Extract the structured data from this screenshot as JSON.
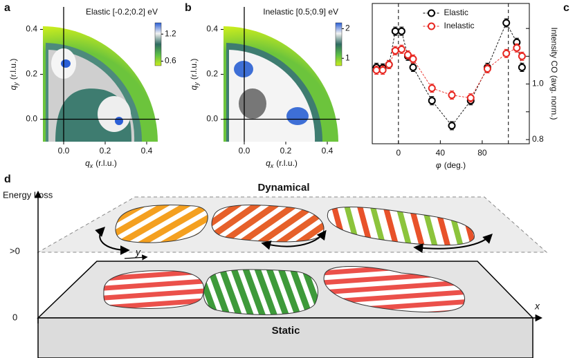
{
  "chart_data": [
    {
      "type": "heatmap",
      "panel": "a",
      "title": "Elastic [-0.2;0.2] eV",
      "xlabel": {
        "symbol": "q",
        "subscript": "x",
        "unit": "(r.l.u.)"
      },
      "ylabel": {
        "symbol": "q",
        "subscript": "y",
        "unit": "(r.l.u.)"
      },
      "xlim": [
        -0.1,
        0.46
      ],
      "ylim": [
        -0.1,
        0.5
      ],
      "xticks": [
        {
          "value": 0,
          "label": "0.0"
        },
        0.2,
        0.4
      ],
      "yticks": [
        {
          "value": 0,
          "label": "0.0"
        },
        0.2,
        0.4
      ],
      "colorbar": {
        "lim": [
          0.5,
          1.45
        ],
        "ticks": [
          0.6,
          1.2
        ],
        "colors": [
          "#c8ec1e",
          "#5cbf47",
          "#2f6b62",
          "#f2f2f2",
          "#2b5fd6"
        ]
      }
    },
    {
      "type": "heatmap",
      "panel": "b",
      "title": "Inelastic [0.5;0.9] eV",
      "xlabel": {
        "symbol": "q",
        "subscript": "x",
        "unit": "(r.l.u.)"
      },
      "ylabel": {
        "symbol": "q",
        "subscript": "y",
        "unit": "(r.l.u.)"
      },
      "xlim": [
        -0.1,
        0.46
      ],
      "ylim": [
        -0.1,
        0.5
      ],
      "xticks": [
        {
          "value": 0,
          "label": "0.0"
        },
        0.2,
        0.4
      ],
      "yticks": [
        {
          "value": 0,
          "label": "0.0"
        },
        0.2,
        0.4
      ],
      "colorbar": {
        "lim": [
          0.75,
          2.2
        ],
        "ticks": [
          1,
          2
        ],
        "colors": [
          "#c8ec1e",
          "#5cbf47",
          "#2f6b62",
          "#f2f2f2",
          "#2b5fd6"
        ]
      }
    },
    {
      "type": "line",
      "panel": "c",
      "ylabel": "Intensity CO (avg. norm.)",
      "xlabel": {
        "symbol": "φ",
        "unit": "(deg.)"
      },
      "x": [
        -21,
        -15,
        -9,
        -3,
        3,
        9,
        14,
        32,
        51,
        69,
        85,
        103,
        113,
        118
      ],
      "series": [
        {
          "name": "Elastic",
          "color": "#000000",
          "values": [
            1.06,
            1.058,
            1.07,
            1.19,
            1.19,
            1.1,
            1.06,
            0.94,
            0.85,
            0.94,
            1.06,
            1.22,
            1.15,
            1.06
          ],
          "errors": [
            0.015,
            0.015,
            0.015,
            0.015,
            0.015,
            0.015,
            0.015,
            0.015,
            0.015,
            0.015,
            0.015,
            0.015,
            0.015,
            0.015
          ]
        },
        {
          "name": "Inelastic",
          "color": "#e8251f",
          "values": [
            1.05,
            1.05,
            1.07,
            1.12,
            1.125,
            1.105,
            1.09,
            0.985,
            0.96,
            0.95,
            1.055,
            1.11,
            1.13,
            1.1
          ],
          "errors": [
            0.015,
            0.015,
            0.015,
            0.015,
            0.015,
            0.015,
            0.015,
            0.015,
            0.015,
            0.015,
            0.015,
            0.015,
            0.015,
            0.015
          ]
        }
      ],
      "line_style": "dashed",
      "marker": "circle",
      "xlim": [
        -25,
        125
      ],
      "ylim": [
        0.785,
        1.29
      ],
      "xticks": [
        0,
        40,
        80
      ],
      "yticks": [
        {
          "value": 0.8,
          "label": "0.8"
        },
        {
          "value": 1,
          "label": "1.0"
        }
      ],
      "yticks_minor": [
        0.9,
        1.1,
        1.2
      ],
      "yaxis_side": "right",
      "vlines": [
        0,
        105
      ],
      "legend": "upper center"
    }
  ],
  "diagram": {
    "panel": "d",
    "axis_label": "Energy Loss",
    "levels": [
      ">0",
      "0"
    ],
    "x_axis": "x",
    "y_axis": "y",
    "dynamical": "Dynamical",
    "static": "Static"
  }
}
